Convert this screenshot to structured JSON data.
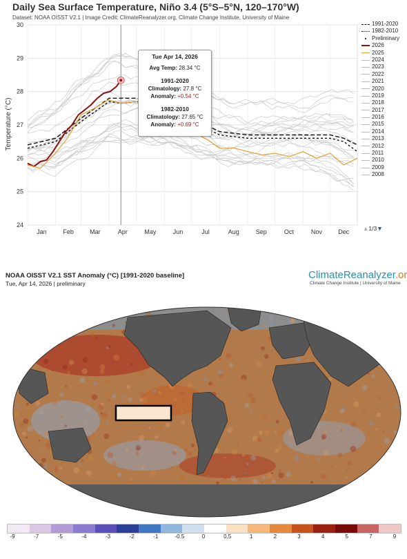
{
  "chart_data": {
    "type": "line",
    "title": "Daily Sea Surface Temperature, Niño 3.4 (5°S–5°N, 120–170°W)",
    "subtitle": "Dataset: NOAA OISST V2.1 | Image Credit: ClimateReanalyzer.org, Climate Change Institute, University of Maine",
    "ylabel": "Temperature (°C)",
    "ylim": [
      24,
      30
    ],
    "yticks": [
      "24",
      "25",
      "26",
      "27",
      "28",
      "29",
      "30"
    ],
    "xticks": [
      "Jan",
      "Feb",
      "Mar",
      "Apr",
      "May",
      "Jun",
      "Jul",
      "Aug",
      "Sep",
      "Oct",
      "Nov",
      "Dec"
    ],
    "grid": true,
    "legend_position": "right",
    "legend": [
      "1991-2020",
      "1982-2010",
      "Preliminary",
      "2026",
      "2025",
      "2024",
      "2023",
      "2022",
      "2021",
      "2020",
      "2019",
      "2018",
      "2017",
      "2016",
      "2015",
      "2014",
      "2013",
      "2012",
      "2011",
      "2010",
      "2009",
      "2008"
    ],
    "series": [
      {
        "name": "1991-2020",
        "color": "#111111",
        "dash": "6,3",
        "x": [
          1,
          32,
          60,
          91,
          105,
          121,
          152,
          182,
          213,
          244,
          274,
          305,
          335,
          350,
          365
        ],
        "y": [
          26.4,
          26.6,
          27.2,
          27.8,
          27.8,
          27.8,
          27.6,
          27.2,
          26.8,
          26.7,
          26.7,
          26.7,
          26.7,
          26.6,
          26.4
        ]
      },
      {
        "name": "1982-2010",
        "color": "#111111",
        "dash": "3,3",
        "x": [
          1,
          32,
          60,
          91,
          105,
          121,
          152,
          182,
          213,
          244,
          274,
          305,
          335,
          350,
          365
        ],
        "y": [
          26.3,
          26.5,
          27.1,
          27.7,
          27.65,
          27.7,
          27.5,
          27.1,
          26.7,
          26.6,
          26.6,
          26.6,
          26.6,
          26.5,
          26.2
        ]
      },
      {
        "name": "2026",
        "color": "#8b1010",
        "x": [
          1,
          8,
          15,
          22,
          29,
          36,
          43,
          50,
          57,
          64,
          71,
          78,
          85,
          92,
          99,
          104
        ],
        "y": [
          25.85,
          25.75,
          25.9,
          25.95,
          26.2,
          26.5,
          26.8,
          27.0,
          27.3,
          27.45,
          27.6,
          27.8,
          27.95,
          28.0,
          28.15,
          28.34
        ]
      },
      {
        "name": "2025",
        "color": "#e0a030",
        "x": [
          1,
          15,
          30,
          45,
          60,
          75,
          90,
          105,
          121,
          135,
          152,
          170,
          182,
          200,
          213,
          230,
          244,
          260,
          274,
          290,
          305,
          320,
          335,
          350,
          365
        ],
        "y": [
          25.8,
          25.7,
          26.1,
          26.6,
          27.3,
          27.5,
          27.75,
          27.65,
          27.7,
          27.8,
          27.4,
          27.05,
          26.8,
          26.55,
          26.3,
          26.3,
          26.2,
          26.1,
          26.15,
          26.05,
          26.2,
          26.0,
          26.15,
          25.8,
          26.0
        ]
      }
    ],
    "highlight": {
      "label": "Preliminary",
      "date": "Tue Apr 14, 2026",
      "x": 104,
      "y": 28.34
    },
    "tooltip": {
      "date": "Tue Apr 14, 2026",
      "avg_label": "Avg Temp:",
      "avg_value": "28.34 °C",
      "base1": "1991-2020",
      "clim1_label": "Climatology:",
      "clim1_value": "27.8 °C",
      "anom1_label": "Anomaly:",
      "anom1_value": "+0.54 °C",
      "base2": "1982-2010",
      "clim2_label": "Climatology:",
      "clim2_value": "27.65 °C",
      "anom2_label": "Anomaly:",
      "anom2_value": "+0.69 °C"
    },
    "legend_page": "1/3"
  },
  "map": {
    "title": "NOAA OISST V2.1 SST Anomaly (°C) [1991-2020 baseline]",
    "date": "Tue, Apr 14, 2026 | preliminary",
    "logo_main": "ClimateReanalyzer",
    "logo_tld": ".org",
    "logo_sub": "Climate Change Institute | University of Maine",
    "colorbar_ticks": [
      "-9",
      "-7",
      "-5",
      "-4",
      "-3",
      "-2",
      "-1",
      "-0.5",
      "0",
      "0.5",
      "1",
      "2",
      "3",
      "4",
      "5",
      "7",
      "9"
    ],
    "colorbar_colors": [
      "#f2e9f4",
      "#dcc6e6",
      "#b39bd6",
      "#8a7ad0",
      "#5a4fb8",
      "#2b3e99",
      "#3e78c4",
      "#8fb6dd",
      "#cfe0ef",
      "#ffffff",
      "#fbe1c4",
      "#f5b77a",
      "#e58a3c",
      "#c8521c",
      "#9c200f",
      "#7a0a0a",
      "#c76464",
      "#f0c8c8"
    ]
  },
  "colors": {
    "land": "#555555",
    "ocean_neutral": "#9a9a9a",
    "warm": "#c8732e",
    "cool": "#6f8fb8"
  }
}
